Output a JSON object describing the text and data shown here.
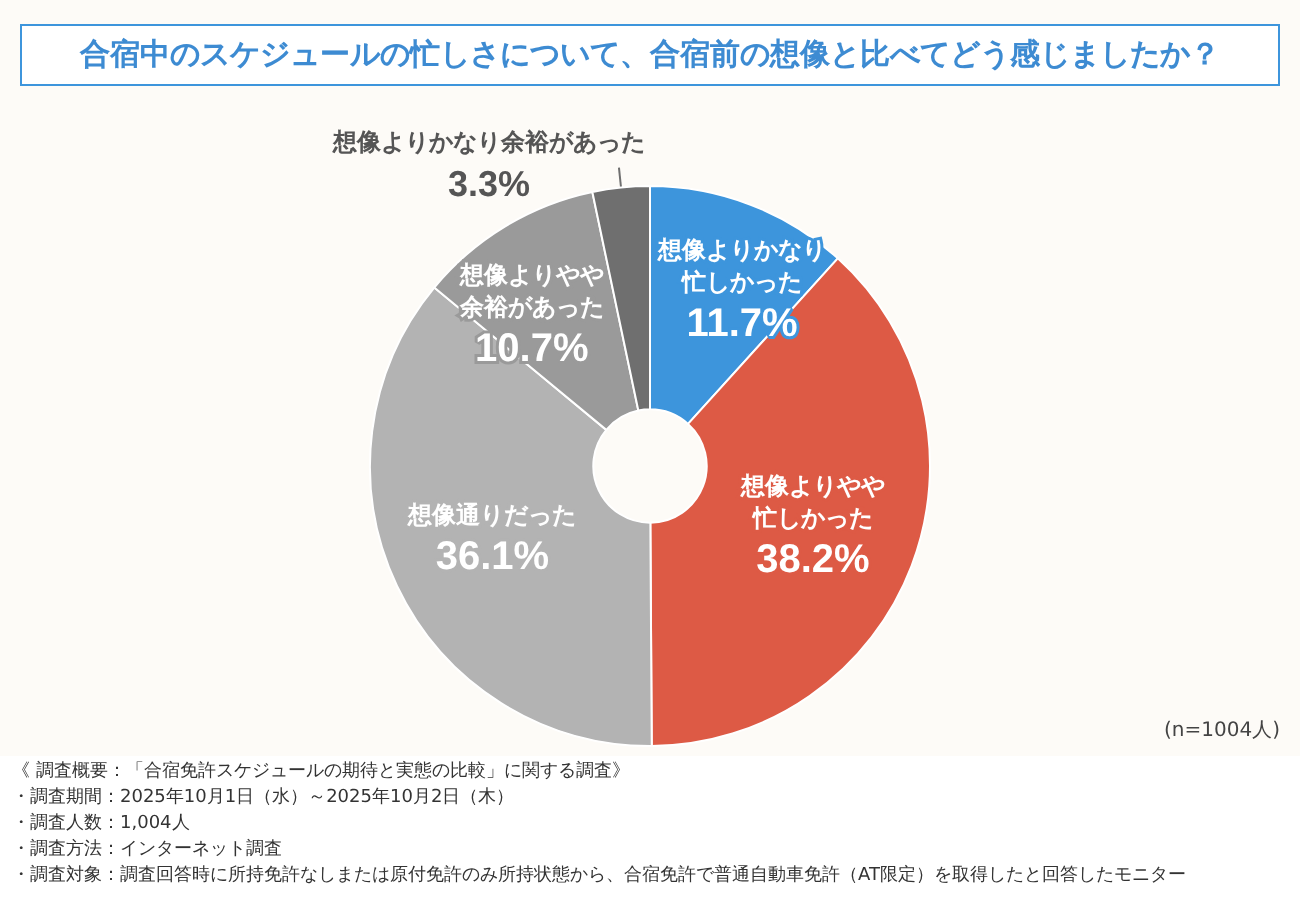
{
  "chart_data": {
    "type": "donut",
    "title": "合宿中のスケジュールの忙しさについて、合宿前の想像と比べてどう感じましたか？",
    "categories": [
      "想像よりかなり忙しかった",
      "想像よりやや忙しかった",
      "想像通りだった",
      "想像よりやや余裕があった",
      "想像よりかなり余裕があった"
    ],
    "value_labels": [
      "11.7%",
      "38.2%",
      "36.1%",
      "10.7%",
      "3.3%"
    ],
    "values": [
      11.7,
      38.2,
      36.1,
      10.7,
      3.3
    ],
    "colors": [
      "#3d95dc",
      "#dd5a45",
      "#b3b3b3",
      "#9a9a9a",
      "#6f6f6f"
    ],
    "annotations": [
      "(n=1004人)",
      "《 調査概要：「合宿免許スケジュールの期待と実態の比較」に関する調査》",
      "・調査期間：2025年10月1日（水）～2025年10月2日（木）",
      "・調査人数：1,004人",
      "・調査方法：インターネット調査",
      "・調査対象：調査回答時に所持免許なしまたは原付免許のみ所持状態から、合宿免許で普通自動車免許（AT限定）を取得したと回答したモニター"
    ]
  }
}
